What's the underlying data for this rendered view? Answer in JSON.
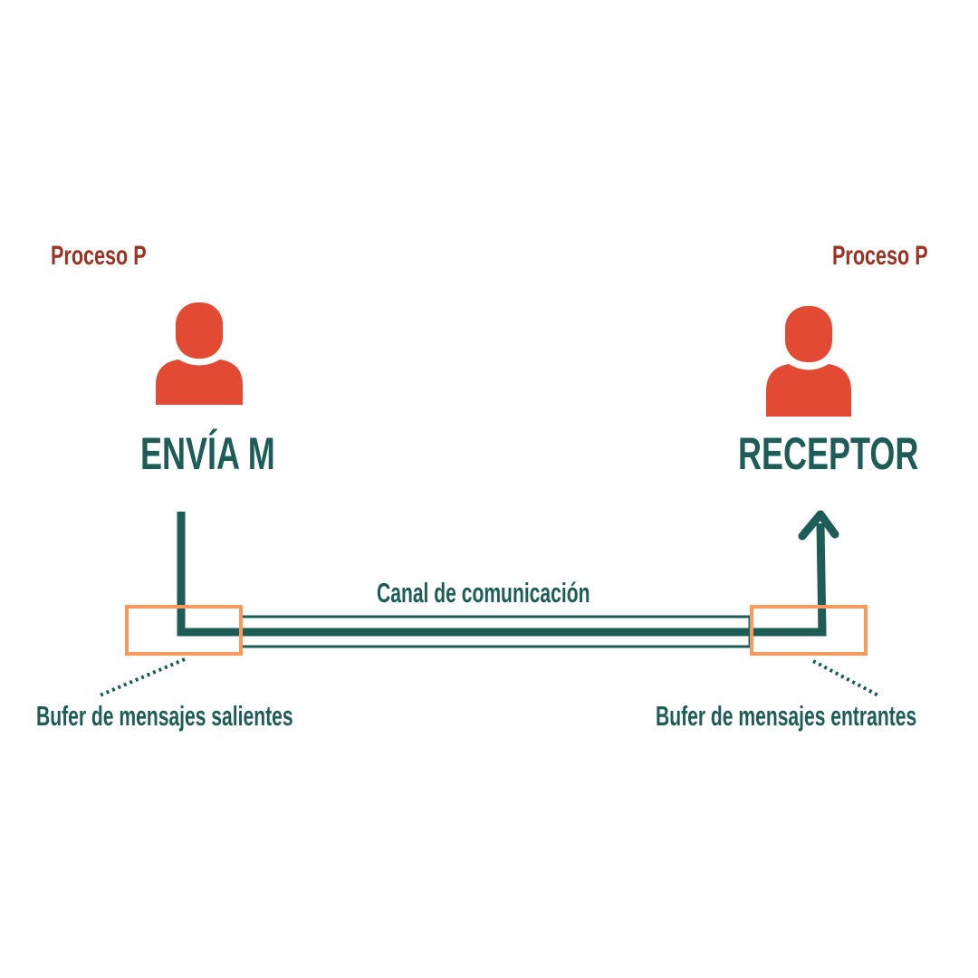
{
  "colors": {
    "label_red": "#9a3324",
    "person_fill": "#e24a33",
    "dark_teal": "#1e5c57",
    "buffer_orange": "#f79a5b"
  },
  "icons": {
    "sender": "person-icon",
    "receiver": "person-icon"
  },
  "sender": {
    "process_label": "Proceso P",
    "action_label": "ENVÍA M"
  },
  "receiver": {
    "process_label": "Proceso P",
    "action_label": "RECEPTOR"
  },
  "channel": {
    "label": "Canal de comunicación"
  },
  "buffers": {
    "outgoing_label": "Bufer de mensajes salientes",
    "incoming_label": "Bufer de mensajes entrantes"
  }
}
